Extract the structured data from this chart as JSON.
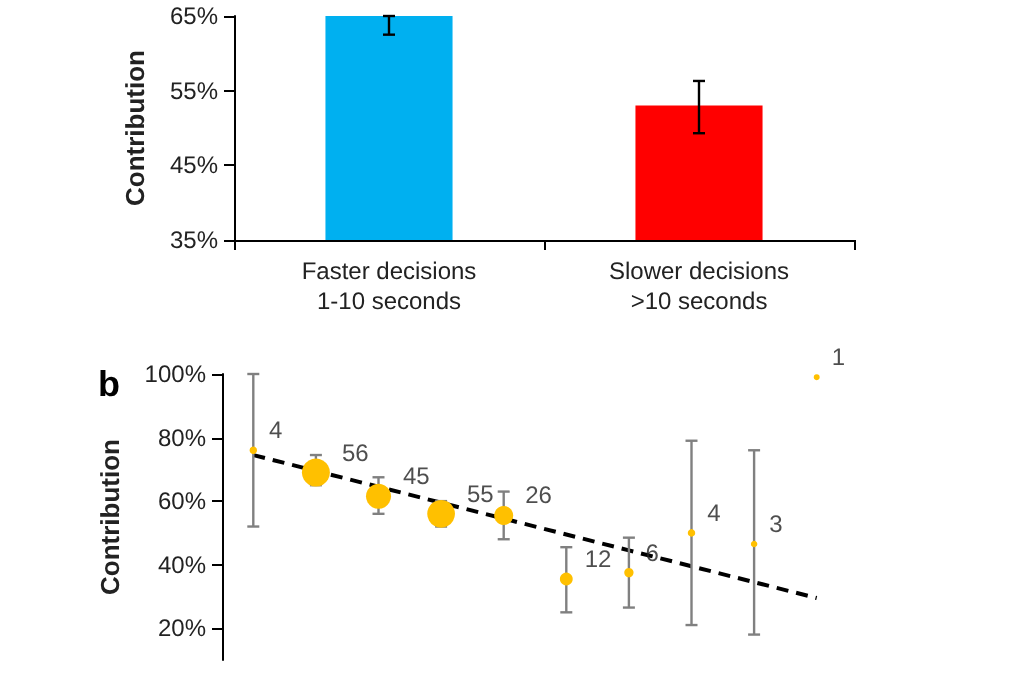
{
  "chart_data": [
    {
      "type": "bar",
      "ylabel": "Contribution",
      "categories": [
        "Faster decisions\n1-10 seconds",
        "Slower decisions\n>10 seconds"
      ],
      "values": [
        65,
        53
      ],
      "colors": [
        "#00b0f0",
        "#ff0000"
      ],
      "errors": [
        [
          62.5,
          65
        ],
        [
          49.3,
          56.3
        ]
      ],
      "ylim": [
        35,
        65
      ],
      "yticks": [
        {
          "value": 35,
          "label": "35%"
        },
        {
          "value": 45,
          "label": "45%"
        },
        {
          "value": 55,
          "label": "55%"
        },
        {
          "value": 65,
          "label": "65%"
        }
      ],
      "grid": false
    },
    {
      "type": "bubble",
      "title": "b",
      "ylabel": "Contribution",
      "tick_labels": "y",
      "categories": [
        null,
        null,
        null,
        null,
        null,
        null,
        null,
        null,
        null,
        null
      ],
      "ylim": [
        10,
        100
      ],
      "yticks": [
        {
          "value": 20,
          "label": "20%"
        },
        {
          "value": 40,
          "label": "40%"
        },
        {
          "value": 60,
          "label": "60%"
        },
        {
          "value": 80,
          "label": "80%"
        },
        {
          "value": 100,
          "label": "100%"
        }
      ],
      "grid": false,
      "annotations": [
        "4",
        "56",
        "45",
        "55",
        "26",
        "12",
        "6",
        "4",
        "3",
        "1"
      ],
      "series": [
        {
          "type": "bubble",
          "color": "#ffc000",
          "values": [
            76,
            69,
            61.5,
            56,
            55.5,
            35.5,
            37.5,
            50,
            46.5,
            99
          ],
          "sizes": [
            0.071,
            1,
            0.8,
            0.98,
            0.46,
            0.21,
            0.11,
            0.071,
            0.054,
            0.018
          ],
          "errors": [
            [
              52,
              100
            ],
            [
              65,
              74.5
            ],
            [
              56,
              67.5
            ],
            [
              52,
              60
            ],
            [
              48,
              63
            ],
            [
              25,
              45.5
            ],
            [
              26.5,
              48.5
            ],
            [
              21,
              79
            ],
            [
              18,
              76
            ],
            null
          ]
        },
        {
          "type": "line",
          "color": "#000000",
          "line_style": "dashed",
          "values": [
            74.5,
            69.5,
            64.5,
            59.5,
            54.5,
            49.5,
            44.5,
            39.5,
            34.5,
            29.5
          ]
        }
      ]
    }
  ]
}
